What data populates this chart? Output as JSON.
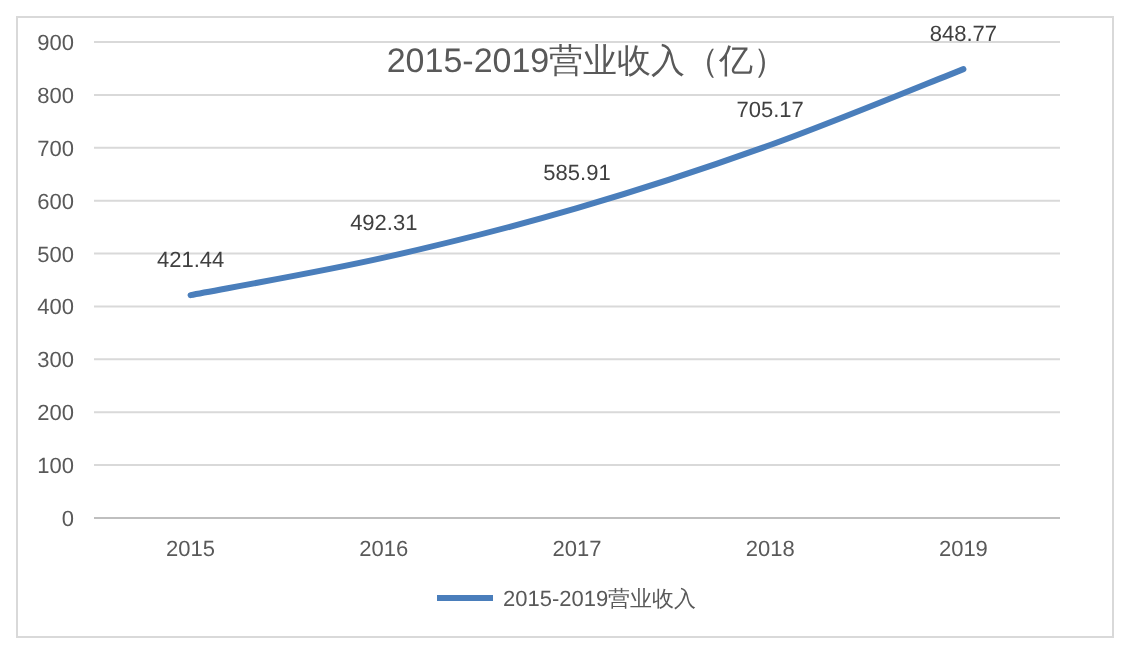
{
  "chart_data": {
    "type": "line",
    "title": "2015-2019营业收入（亿）",
    "categories": [
      "2015",
      "2016",
      "2017",
      "2018",
      "2019"
    ],
    "series": [
      {
        "name": "2015-2019营业收入",
        "color": "#4a7ebb",
        "values": [
          421.44,
          492.31,
          585.91,
          705.17,
          848.77
        ]
      }
    ],
    "ylim": [
      0,
      900
    ],
    "yticks": [
      0,
      100,
      200,
      300,
      400,
      500,
      600,
      700,
      800,
      900
    ],
    "grid": "y",
    "legend": "bottom",
    "data_labels": true,
    "marker": "none",
    "line_style": "solid"
  }
}
